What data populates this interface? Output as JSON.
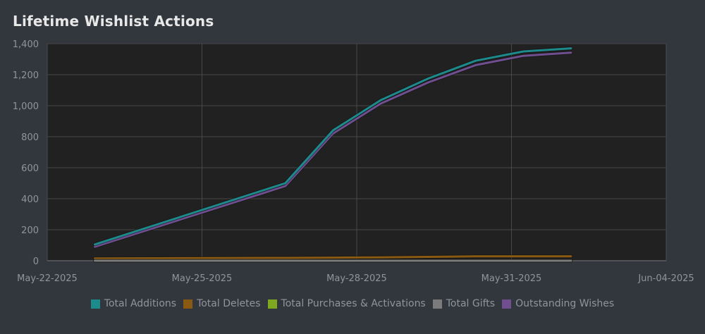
{
  "page": {
    "title": "Lifetime Wishlist Actions"
  },
  "chart_data": {
    "type": "line",
    "title": "Lifetime Wishlist Actions",
    "xlabel": "",
    "ylabel": "",
    "x_ticks": [
      "May-22-2025",
      "May-25-2025",
      "May-28-2025",
      "May-31-2025",
      "Jun-04-2025"
    ],
    "x_range": [
      "2025-05-22",
      "2025-06-04"
    ],
    "ylim": [
      0,
      1400
    ],
    "y_ticks": [
      "0",
      "200",
      "400",
      "600",
      "800",
      "1,000",
      "1,200",
      "1,400"
    ],
    "grid": true,
    "legend_position": "bottom",
    "x": [
      "2025-05-23",
      "2025-05-27",
      "2025-05-28",
      "2025-05-29",
      "2025-05-30",
      "2025-05-31",
      "2025-06-01",
      "2025-06-02"
    ],
    "series": [
      {
        "name": "Total Additions",
        "color": "#1d8a8c",
        "values": [
          105,
          500,
          840,
          1035,
          1175,
          1290,
          1350,
          1370
        ]
      },
      {
        "name": "Total Deletes",
        "color": "#8a5a12",
        "values": [
          15,
          18,
          20,
          22,
          25,
          28,
          28,
          28
        ]
      },
      {
        "name": "Total Purchases & Activations",
        "color": "#7fa821",
        "values": [
          0,
          0,
          0,
          0,
          0,
          0,
          0,
          0
        ]
      },
      {
        "name": "Total Gifts",
        "color": "#7b7b7b",
        "values": [
          0,
          0,
          0,
          0,
          0,
          0,
          0,
          0
        ]
      },
      {
        "name": "Outstanding Wishes",
        "color": "#6f4f90",
        "values": [
          90,
          482,
          820,
          1013,
          1150,
          1262,
          1322,
          1342
        ]
      }
    ]
  }
}
